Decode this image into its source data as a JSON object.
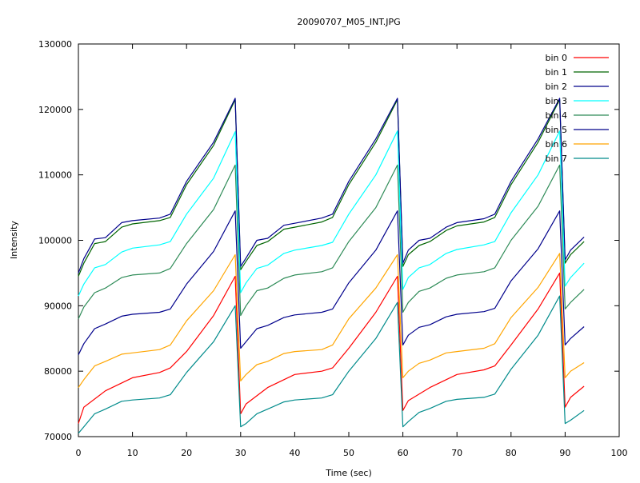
{
  "chart_data": {
    "type": "line",
    "title": "20090707_M05_INT.JPG",
    "xlabel": "Time (sec)",
    "ylabel": "Intensity",
    "xlim": [
      0,
      100
    ],
    "ylim": [
      70000,
      130000
    ],
    "xticks": [
      0,
      10,
      20,
      30,
      40,
      50,
      60,
      70,
      80,
      90,
      100
    ],
    "yticks": [
      70000,
      80000,
      90000,
      100000,
      110000,
      120000,
      130000
    ],
    "grid": false,
    "legend_position": "top-right",
    "series": [
      {
        "name": "bin 0",
        "color": "#ff0000",
        "points": [
          [
            0,
            72000
          ],
          [
            1,
            74500
          ],
          [
            5,
            77000
          ],
          [
            10,
            79000
          ],
          [
            15,
            79800
          ],
          [
            17,
            80500
          ],
          [
            20,
            83000
          ],
          [
            25,
            88500
          ],
          [
            29,
            94500
          ],
          [
            30,
            73500
          ],
          [
            31,
            75000
          ],
          [
            35,
            77500
          ],
          [
            40,
            79500
          ],
          [
            45,
            80000
          ],
          [
            47,
            80500
          ],
          [
            50,
            83500
          ],
          [
            55,
            89000
          ],
          [
            59,
            94500
          ],
          [
            60,
            74000
          ],
          [
            61,
            75500
          ],
          [
            65,
            77500
          ],
          [
            70,
            79500
          ],
          [
            75,
            80200
          ],
          [
            77,
            80800
          ],
          [
            80,
            84000
          ],
          [
            85,
            89500
          ],
          [
            89,
            95000
          ],
          [
            90,
            74500
          ],
          [
            91,
            76000
          ],
          [
            93.5,
            77700
          ]
        ]
      },
      {
        "name": "bin 1",
        "color": "#006400",
        "points": [
          [
            0,
            94500
          ],
          [
            1,
            96500
          ],
          [
            3,
            99500
          ],
          [
            5,
            99800
          ],
          [
            8,
            102000
          ],
          [
            10,
            102500
          ],
          [
            15,
            103000
          ],
          [
            17,
            103500
          ],
          [
            20,
            108500
          ],
          [
            25,
            114500
          ],
          [
            29,
            121500
          ],
          [
            30,
            95500
          ],
          [
            31,
            96800
          ],
          [
            33,
            99200
          ],
          [
            35,
            99800
          ],
          [
            38,
            101700
          ],
          [
            40,
            102000
          ],
          [
            45,
            102800
          ],
          [
            47,
            103500
          ],
          [
            50,
            108500
          ],
          [
            55,
            115000
          ],
          [
            59,
            121500
          ],
          [
            60,
            96000
          ],
          [
            61,
            97800
          ],
          [
            63,
            99200
          ],
          [
            65,
            99800
          ],
          [
            68,
            101500
          ],
          [
            70,
            102200
          ],
          [
            75,
            102800
          ],
          [
            77,
            103500
          ],
          [
            80,
            108500
          ],
          [
            85,
            115000
          ],
          [
            89,
            121500
          ],
          [
            90,
            96500
          ],
          [
            91,
            97800
          ],
          [
            93.5,
            99800
          ]
        ]
      },
      {
        "name": "bin 2",
        "color": "#00008b",
        "points": [
          [
            0,
            95000
          ],
          [
            1,
            97200
          ],
          [
            3,
            100200
          ],
          [
            5,
            100400
          ],
          [
            8,
            102700
          ],
          [
            10,
            103000
          ],
          [
            15,
            103400
          ],
          [
            17,
            104000
          ],
          [
            20,
            109000
          ],
          [
            25,
            115000
          ],
          [
            29,
            121700
          ],
          [
            30,
            96000
          ],
          [
            31,
            97300
          ],
          [
            33,
            100000
          ],
          [
            35,
            100300
          ],
          [
            38,
            102300
          ],
          [
            40,
            102600
          ],
          [
            45,
            103400
          ],
          [
            47,
            104000
          ],
          [
            50,
            109000
          ],
          [
            55,
            115500
          ],
          [
            59,
            121700
          ],
          [
            60,
            96500
          ],
          [
            61,
            98500
          ],
          [
            63,
            100000
          ],
          [
            65,
            100300
          ],
          [
            68,
            102000
          ],
          [
            70,
            102700
          ],
          [
            75,
            103300
          ],
          [
            77,
            104000
          ],
          [
            80,
            109000
          ],
          [
            85,
            115500
          ],
          [
            89,
            121700
          ],
          [
            90,
            97000
          ],
          [
            91,
            98500
          ],
          [
            93.5,
            100500
          ]
        ]
      },
      {
        "name": "bin 3",
        "color": "#00ffff",
        "points": [
          [
            0,
            91500
          ],
          [
            1,
            93300
          ],
          [
            3,
            95800
          ],
          [
            5,
            96300
          ],
          [
            8,
            98200
          ],
          [
            10,
            98800
          ],
          [
            15,
            99300
          ],
          [
            17,
            99800
          ],
          [
            20,
            104000
          ],
          [
            25,
            109500
          ],
          [
            29,
            116600
          ],
          [
            30,
            92000
          ],
          [
            31,
            93500
          ],
          [
            33,
            95700
          ],
          [
            35,
            96200
          ],
          [
            38,
            98000
          ],
          [
            40,
            98500
          ],
          [
            45,
            99200
          ],
          [
            47,
            99700
          ],
          [
            50,
            104000
          ],
          [
            55,
            110000
          ],
          [
            59,
            116700
          ],
          [
            60,
            92500
          ],
          [
            61,
            94300
          ],
          [
            63,
            95800
          ],
          [
            65,
            96300
          ],
          [
            68,
            98000
          ],
          [
            70,
            98600
          ],
          [
            75,
            99300
          ],
          [
            77,
            99800
          ],
          [
            80,
            104200
          ],
          [
            85,
            110000
          ],
          [
            89,
            116700
          ],
          [
            90,
            93000
          ],
          [
            91,
            94300
          ],
          [
            93.5,
            96500
          ]
        ]
      },
      {
        "name": "bin 4",
        "color": "#2e8b57",
        "points": [
          [
            0,
            88000
          ],
          [
            1,
            89800
          ],
          [
            3,
            92000
          ],
          [
            5,
            92700
          ],
          [
            8,
            94300
          ],
          [
            10,
            94700
          ],
          [
            15,
            95000
          ],
          [
            17,
            95700
          ],
          [
            20,
            99500
          ],
          [
            25,
            104700
          ],
          [
            29,
            111500
          ],
          [
            30,
            88500
          ],
          [
            31,
            90000
          ],
          [
            33,
            92300
          ],
          [
            35,
            92700
          ],
          [
            38,
            94200
          ],
          [
            40,
            94700
          ],
          [
            45,
            95200
          ],
          [
            47,
            95800
          ],
          [
            50,
            99800
          ],
          [
            55,
            105000
          ],
          [
            59,
            111500
          ],
          [
            60,
            89000
          ],
          [
            61,
            90500
          ],
          [
            63,
            92200
          ],
          [
            65,
            92700
          ],
          [
            68,
            94200
          ],
          [
            70,
            94700
          ],
          [
            75,
            95200
          ],
          [
            77,
            95800
          ],
          [
            80,
            100000
          ],
          [
            85,
            105200
          ],
          [
            89,
            111500
          ],
          [
            90,
            89500
          ],
          [
            91,
            90500
          ],
          [
            93.5,
            92500
          ]
        ]
      },
      {
        "name": "bin 5",
        "color": "#00008b",
        "points": [
          [
            0,
            82500
          ],
          [
            1,
            84200
          ],
          [
            3,
            86500
          ],
          [
            5,
            87200
          ],
          [
            8,
            88400
          ],
          [
            10,
            88700
          ],
          [
            15,
            89000
          ],
          [
            17,
            89500
          ],
          [
            20,
            93300
          ],
          [
            25,
            98300
          ],
          [
            29,
            104500
          ],
          [
            30,
            83500
          ],
          [
            31,
            84500
          ],
          [
            33,
            86500
          ],
          [
            35,
            87000
          ],
          [
            38,
            88200
          ],
          [
            40,
            88600
          ],
          [
            45,
            89000
          ],
          [
            47,
            89500
          ],
          [
            50,
            93500
          ],
          [
            55,
            98500
          ],
          [
            59,
            104500
          ],
          [
            60,
            84000
          ],
          [
            61,
            85500
          ],
          [
            63,
            86700
          ],
          [
            65,
            87100
          ],
          [
            68,
            88300
          ],
          [
            70,
            88700
          ],
          [
            75,
            89100
          ],
          [
            77,
            89600
          ],
          [
            80,
            93800
          ],
          [
            85,
            98700
          ],
          [
            89,
            104500
          ],
          [
            90,
            84000
          ],
          [
            91,
            85000
          ],
          [
            93.5,
            86800
          ]
        ]
      },
      {
        "name": "bin 6",
        "color": "#ffa500",
        "points": [
          [
            0,
            77500
          ],
          [
            1,
            78700
          ],
          [
            3,
            80800
          ],
          [
            5,
            81500
          ],
          [
            8,
            82600
          ],
          [
            10,
            82800
          ],
          [
            15,
            83300
          ],
          [
            17,
            84000
          ],
          [
            20,
            87700
          ],
          [
            25,
            92300
          ],
          [
            29,
            97800
          ],
          [
            30,
            78500
          ],
          [
            31,
            79500
          ],
          [
            33,
            81000
          ],
          [
            35,
            81500
          ],
          [
            38,
            82700
          ],
          [
            40,
            83000
          ],
          [
            45,
            83300
          ],
          [
            47,
            84000
          ],
          [
            50,
            88000
          ],
          [
            55,
            92700
          ],
          [
            59,
            97800
          ],
          [
            60,
            79000
          ],
          [
            61,
            80000
          ],
          [
            63,
            81200
          ],
          [
            65,
            81700
          ],
          [
            68,
            82800
          ],
          [
            70,
            83000
          ],
          [
            75,
            83500
          ],
          [
            77,
            84200
          ],
          [
            80,
            88200
          ],
          [
            85,
            92800
          ],
          [
            89,
            98000
          ],
          [
            90,
            79000
          ],
          [
            91,
            80000
          ],
          [
            93.5,
            81300
          ]
        ]
      },
      {
        "name": "bin 7",
        "color": "#008b8b",
        "points": [
          [
            0,
            70500
          ],
          [
            1,
            71500
          ],
          [
            3,
            73500
          ],
          [
            5,
            74200
          ],
          [
            8,
            75400
          ],
          [
            10,
            75600
          ],
          [
            15,
            75900
          ],
          [
            17,
            76400
          ],
          [
            20,
            79800
          ],
          [
            25,
            84500
          ],
          [
            29,
            90000
          ],
          [
            30,
            71500
          ],
          [
            31,
            72000
          ],
          [
            33,
            73500
          ],
          [
            35,
            74200
          ],
          [
            38,
            75300
          ],
          [
            40,
            75600
          ],
          [
            45,
            75900
          ],
          [
            47,
            76400
          ],
          [
            50,
            80000
          ],
          [
            55,
            85000
          ],
          [
            59,
            90500
          ],
          [
            60,
            71500
          ],
          [
            61,
            72300
          ],
          [
            63,
            73700
          ],
          [
            65,
            74300
          ],
          [
            68,
            75400
          ],
          [
            70,
            75700
          ],
          [
            75,
            76000
          ],
          [
            77,
            76500
          ],
          [
            80,
            80300
          ],
          [
            85,
            85500
          ],
          [
            89,
            91500
          ],
          [
            90,
            72000
          ],
          [
            91,
            72500
          ],
          [
            93.5,
            74000
          ]
        ]
      }
    ]
  }
}
